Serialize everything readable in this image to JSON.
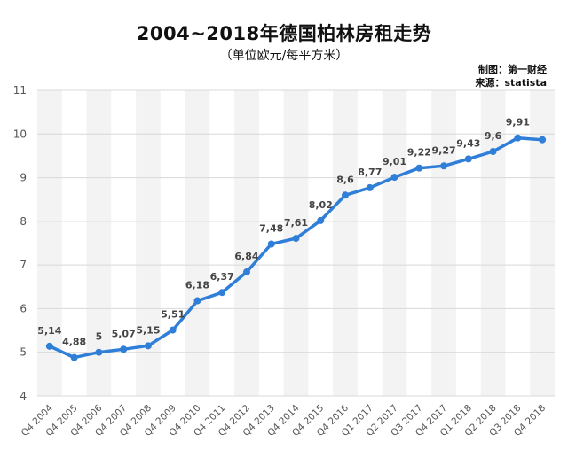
{
  "chart_data": {
    "type": "line",
    "title": "2004~2018年德国柏林房租走势",
    "subtitle": "（单位欧元/每平方米）",
    "credits": {
      "producer_label": "制图：",
      "producer": "第一财经",
      "source_label": "来源：",
      "source": "statista"
    },
    "categories": [
      "Q4 2004",
      "Q4 2005",
      "Q4 2006",
      "Q4 2007",
      "Q4 2008",
      "Q4 2009",
      "Q4 2010",
      "Q4 2011",
      "Q4 2012",
      "Q4 2013",
      "Q4 2014",
      "Q4 2015",
      "Q4 2016",
      "Q1 2017",
      "Q2 2017",
      "Q3 2017",
      "Q4 2017",
      "Q1 2018",
      "Q2 2018",
      "Q3 2018",
      "Q4 2018"
    ],
    "values": [
      5.14,
      4.88,
      5,
      5.07,
      5.15,
      5.51,
      6.18,
      6.37,
      6.84,
      7.48,
      7.61,
      8.02,
      8.6,
      8.77,
      9.01,
      9.22,
      9.27,
      9.43,
      9.6,
      9.91,
      9.87
    ],
    "data_labels": [
      "5,14",
      "4,88",
      "5",
      "5,07",
      "5,15",
      "5,51",
      "6,18",
      "6,37",
      "6,84",
      "7,48",
      "7,61",
      "8,02",
      "8,6",
      "8,77",
      "9,01",
      "9,22",
      "9,27",
      "9,43",
      "9,6",
      "9,91",
      ""
    ],
    "yticks": [
      "4",
      "5",
      "6",
      "7",
      "8",
      "9",
      "10",
      "11"
    ],
    "ylim": [
      4,
      11
    ],
    "xlabel": "",
    "ylabel": "",
    "grid": true,
    "colors": {
      "line": "#2f7ed8",
      "band": "#f3f3f3",
      "grid": "#d8d8d8",
      "label": "#444444",
      "tick": "#555555"
    }
  }
}
